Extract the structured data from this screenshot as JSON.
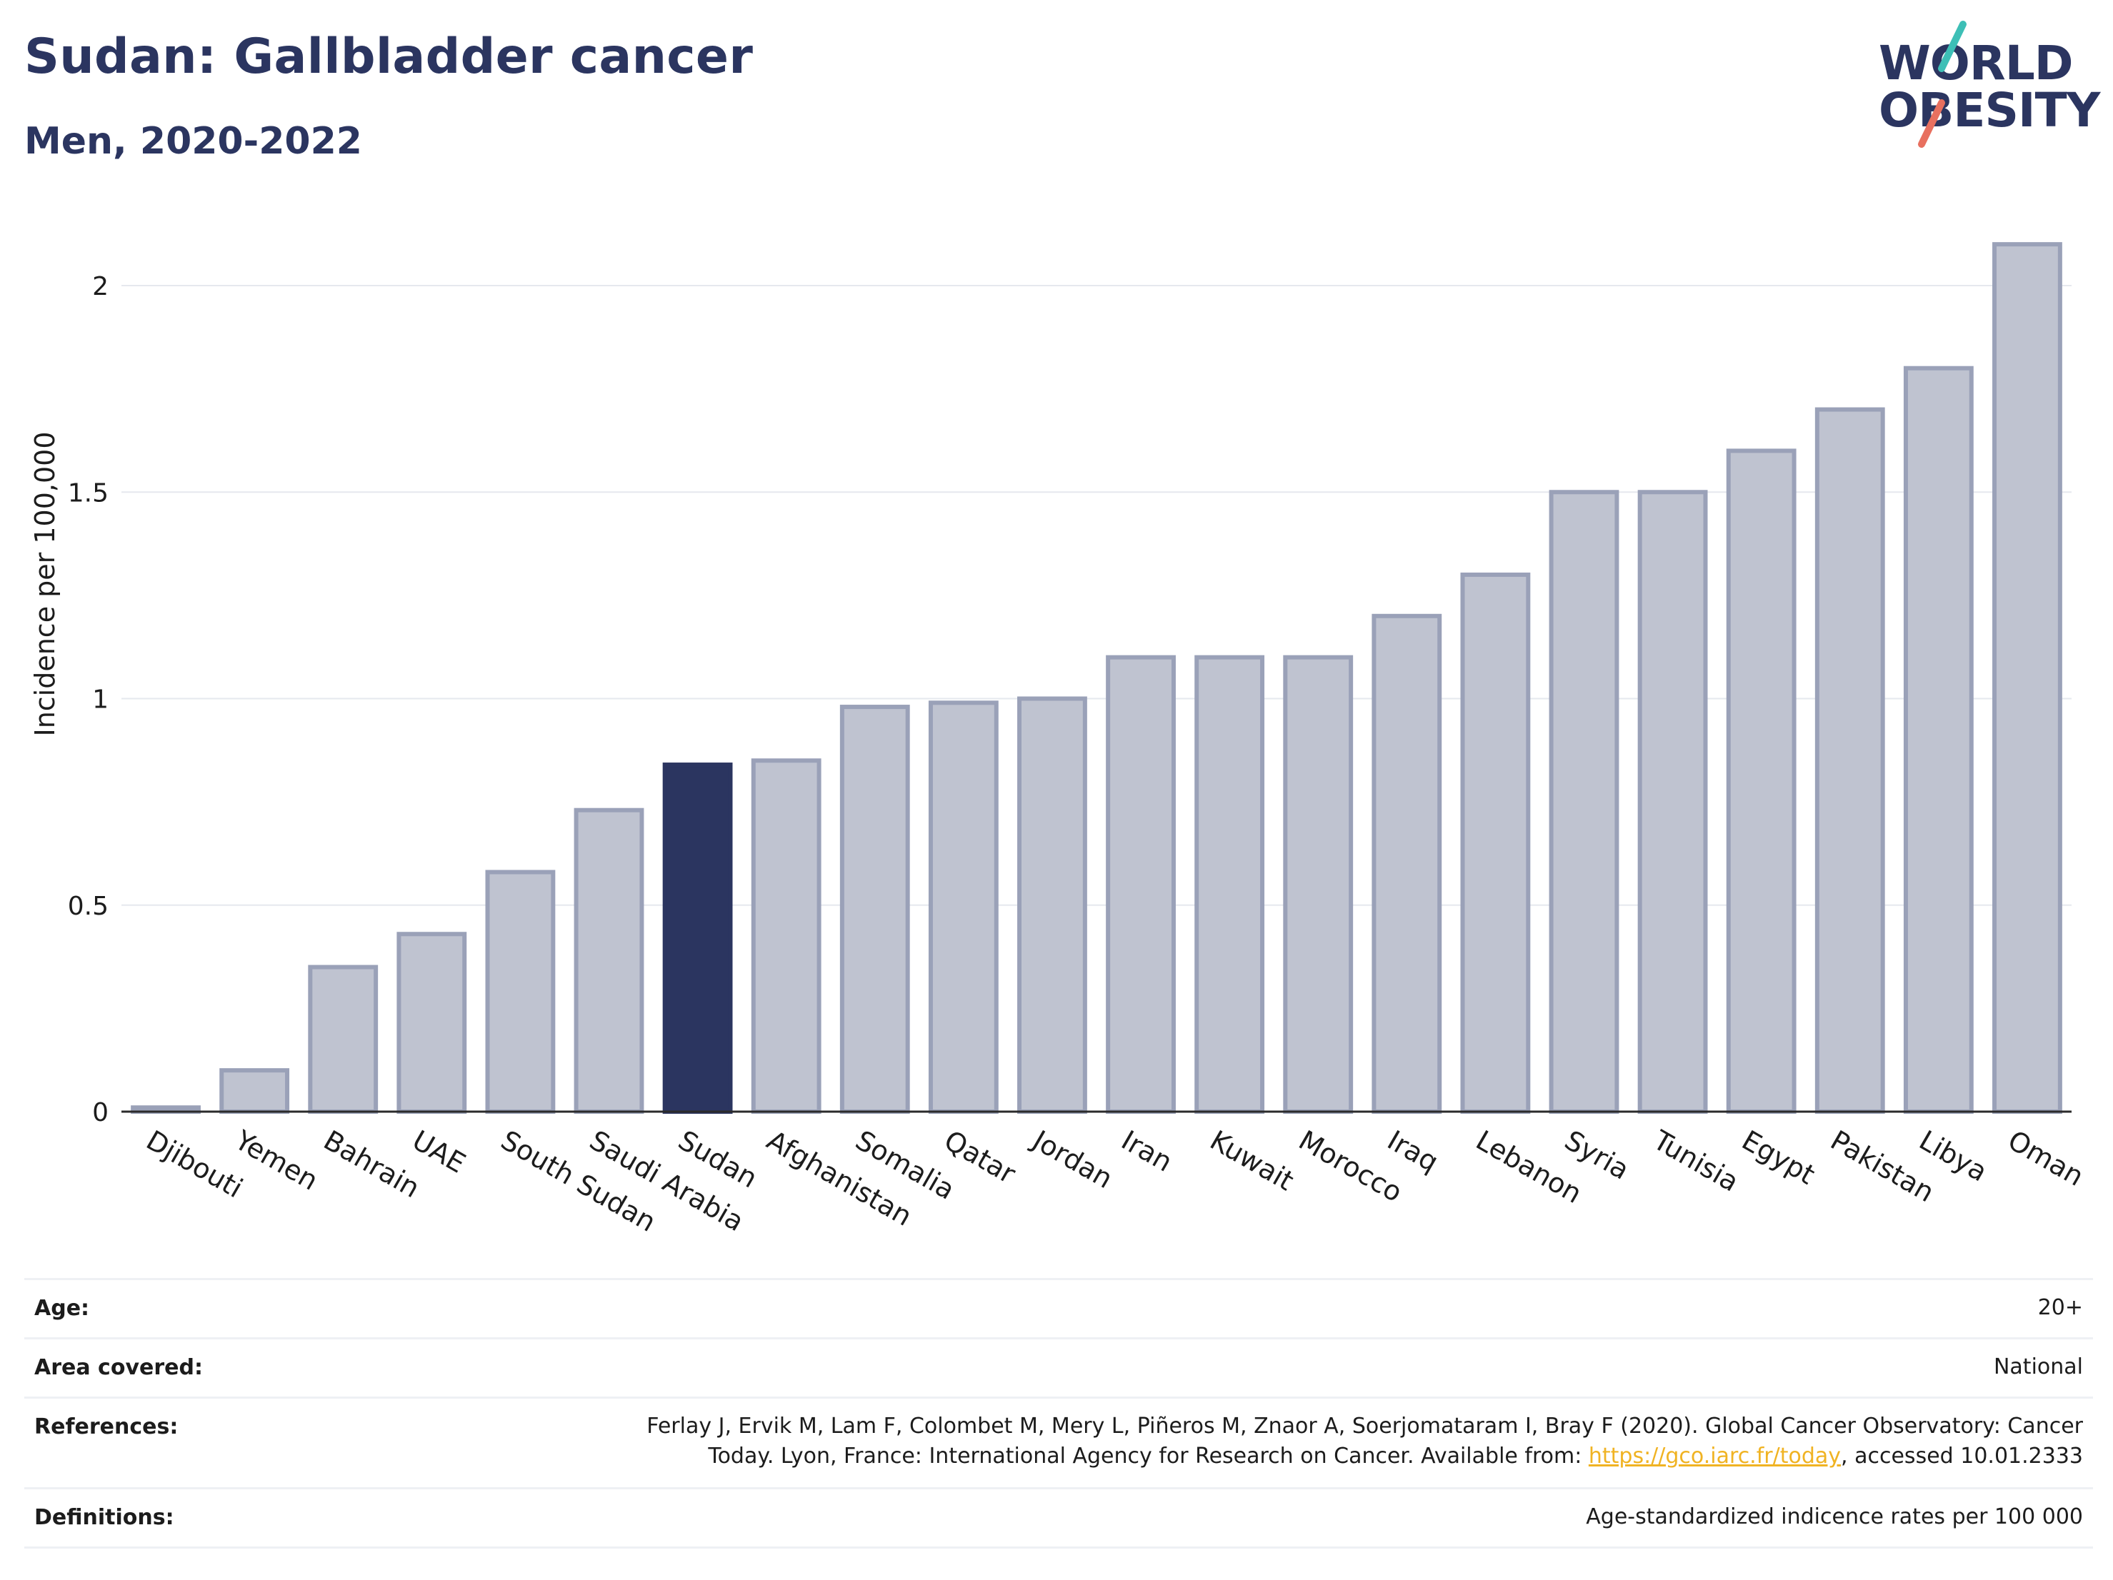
{
  "header": {
    "title": "Sudan: Gallbladder cancer",
    "subtitle": "Men, 2020-2022"
  },
  "logo": {
    "line1": "WORLD",
    "line2": "OBESITY",
    "accent_colors": [
      "#3dbfb6",
      "#e8705f"
    ]
  },
  "chart_data": {
    "type": "bar",
    "ylabel": "Incidence per 100,000",
    "xlabel": "",
    "ylim": [
      0,
      2.2
    ],
    "yticks": [
      0,
      0.5,
      1,
      1.5,
      2
    ],
    "ytick_labels": [
      "0",
      "0.5",
      "1",
      "1.5",
      "2"
    ],
    "grid": true,
    "categories": [
      "Djibouti",
      "Yemen",
      "Bahrain",
      "UAE",
      "South Sudan",
      "Saudi Arabia",
      "Sudan",
      "Afghanistan",
      "Somalia",
      "Qatar",
      "Jordan",
      "Iran",
      "Kuwait",
      "Morocco",
      "Iraq",
      "Lebanon",
      "Syria",
      "Tunisia",
      "Egypt",
      "Pakistan",
      "Libya",
      "Oman"
    ],
    "values": [
      0.01,
      0.1,
      0.35,
      0.43,
      0.58,
      0.73,
      0.84,
      0.85,
      0.98,
      0.99,
      1.0,
      1.1,
      1.1,
      1.1,
      1.2,
      1.3,
      1.5,
      1.5,
      1.6,
      1.7,
      1.8,
      2.1
    ],
    "highlight": "Sudan",
    "colors": {
      "bar_fill": "#bfc3d0",
      "bar_stroke": "#9aa1b8",
      "highlight": "#2b3560",
      "grid": "#e6e8ee",
      "axis": "#2b2b2b"
    }
  },
  "meta": {
    "rows": [
      {
        "label": "Age:",
        "value": "20+"
      },
      {
        "label": "Area covered:",
        "value": "National"
      },
      {
        "label": "References:",
        "value_line1": "Ferlay J, Ervik M, Lam F, Colombet M, Mery L, Piñeros M, Znaor A, Soerjomataram I, Bray F (2020). Global Cancer Observatory: Cancer",
        "value_line2_pre": "Today. Lyon, France: International Agency for Research on Cancer. Available from: ",
        "link": "https://gco.iarc.fr/today",
        "value_line2_post": ", accessed 10.01.2333"
      },
      {
        "label": "Definitions:",
        "value": "Age-standardized indicence rates per 100 000"
      }
    ]
  }
}
